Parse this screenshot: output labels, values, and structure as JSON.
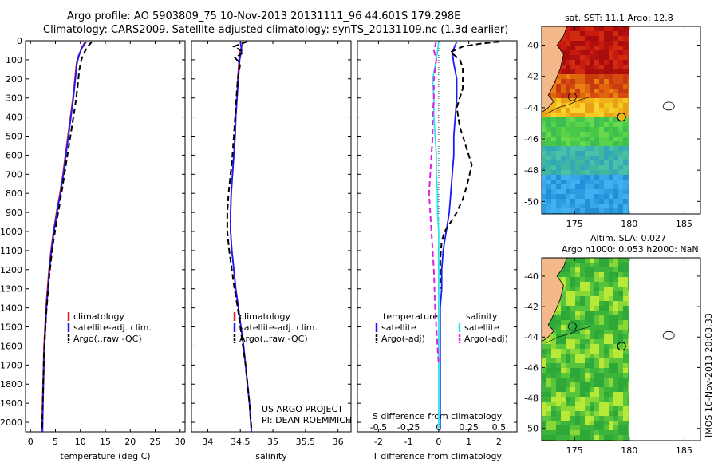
{
  "header": {
    "line1": "Argo profile: AO 5903809_75 10-Nov-2013 20131111_96 44.601S 179.298E",
    "line2": "Climatology: CARS2009. Satellite-adjusted climatology: synTS_20131109.nc (1.3d earlier)"
  },
  "colors": {
    "climatology": "#e02020",
    "satellite": "#1a1aff",
    "argo": "#000000",
    "salinity_satellite": "#33e6e6",
    "salinity_argo": "#e020e0",
    "land": "#f4b98a"
  },
  "chart_data": [
    {
      "id": "temperature",
      "type": "line",
      "xlabel": "temperature (deg C)",
      "xlim": [
        -1,
        31
      ],
      "xticks": [
        "0",
        "5",
        "10",
        "15",
        "20",
        "25",
        "30"
      ],
      "ylim": [
        0,
        2050
      ],
      "yticks": [
        "0",
        "100",
        "200",
        "300",
        "400",
        "500",
        "600",
        "700",
        "800",
        "900",
        "1000",
        "1100",
        "1200",
        "1300",
        "1400",
        "1500",
        "1600",
        "1700",
        "1800",
        "1900",
        "2000"
      ],
      "legend": [
        "climatology",
        "satellite-adj. clim.",
        "Argo(..raw -QC)"
      ],
      "series": [
        {
          "name": "climatology",
          "style": "solid",
          "color_key": "climatology",
          "points": [
            [
              11.2,
              5
            ],
            [
              10.3,
              40
            ],
            [
              9.6,
              80
            ],
            [
              9.2,
              120
            ],
            [
              8.9,
              200
            ],
            [
              8.5,
              300
            ],
            [
              8.0,
              400
            ],
            [
              7.5,
              500
            ],
            [
              7.0,
              600
            ],
            [
              6.5,
              700
            ],
            [
              5.9,
              800
            ],
            [
              5.2,
              900
            ],
            [
              4.6,
              1000
            ],
            [
              4.1,
              1100
            ],
            [
              3.7,
              1200
            ],
            [
              3.4,
              1300
            ],
            [
              3.1,
              1400
            ],
            [
              2.9,
              1500
            ],
            [
              2.7,
              1600
            ],
            [
              2.6,
              1700
            ],
            [
              2.5,
              1800
            ],
            [
              2.4,
              1900
            ],
            [
              2.3,
              2050
            ]
          ]
        },
        {
          "name": "satellite-adj. clim.",
          "style": "solid",
          "color_key": "satellite",
          "points": [
            [
              11.0,
              5
            ],
            [
              10.2,
              40
            ],
            [
              9.7,
              80
            ],
            [
              9.3,
              120
            ],
            [
              9.0,
              200
            ],
            [
              8.6,
              300
            ],
            [
              8.1,
              400
            ],
            [
              7.6,
              500
            ],
            [
              7.1,
              600
            ],
            [
              6.6,
              700
            ],
            [
              6.0,
              800
            ],
            [
              5.3,
              900
            ],
            [
              4.7,
              1000
            ],
            [
              4.2,
              1100
            ],
            [
              3.8,
              1200
            ],
            [
              3.5,
              1300
            ],
            [
              3.2,
              1400
            ],
            [
              3.0,
              1500
            ],
            [
              2.8,
              1600
            ],
            [
              2.7,
              1700
            ],
            [
              2.6,
              1800
            ],
            [
              2.5,
              1900
            ],
            [
              2.4,
              2050
            ]
          ]
        },
        {
          "name": "Argo(..raw -QC)",
          "style": "dashed",
          "color_key": "argo",
          "points": [
            [
              12.3,
              5
            ],
            [
              11.5,
              30
            ],
            [
              10.8,
              60
            ],
            [
              10.2,
              100
            ],
            [
              9.8,
              150
            ],
            [
              9.4,
              250
            ],
            [
              8.9,
              350
            ],
            [
              8.3,
              450
            ],
            [
              7.7,
              550
            ],
            [
              7.1,
              650
            ],
            [
              6.5,
              750
            ],
            [
              5.9,
              850
            ],
            [
              5.2,
              950
            ],
            [
              4.6,
              1050
            ],
            [
              4.1,
              1150
            ],
            [
              3.7,
              1250
            ],
            [
              3.4,
              1350
            ],
            [
              3.1,
              1450
            ],
            [
              2.9,
              1550
            ],
            [
              2.7,
              1650
            ],
            [
              2.6,
              1750
            ],
            [
              2.5,
              1850
            ],
            [
              2.4,
              1950
            ],
            [
              2.3,
              2030
            ]
          ]
        }
      ]
    },
    {
      "id": "salinity",
      "type": "line",
      "xlabel": "salinity",
      "xlim": [
        33.75,
        36.2
      ],
      "xticks": [
        "34",
        "34.5",
        "35",
        "35.5",
        "36"
      ],
      "ylim": [
        0,
        2050
      ],
      "legend": [
        "climatology",
        "satellite-adj. clim.",
        "Argo(..raw -QC)"
      ],
      "annotations": [
        "US ARGO PROJECT",
        "PI: DEAN ROEMMICH"
      ],
      "series": [
        {
          "name": "climatology",
          "style": "solid",
          "color_key": "climatology",
          "points": [
            [
              34.55,
              5
            ],
            [
              34.5,
              50
            ],
            [
              34.48,
              100
            ],
            [
              34.46,
              200
            ],
            [
              34.45,
              300
            ],
            [
              34.43,
              400
            ],
            [
              34.42,
              500
            ],
            [
              34.4,
              600
            ],
            [
              34.38,
              700
            ],
            [
              34.36,
              800
            ],
            [
              34.35,
              900
            ],
            [
              34.35,
              1000
            ],
            [
              34.37,
              1100
            ],
            [
              34.4,
              1200
            ],
            [
              34.43,
              1300
            ],
            [
              34.47,
              1400
            ],
            [
              34.51,
              1500
            ],
            [
              34.55,
              1600
            ],
            [
              34.58,
              1700
            ],
            [
              34.61,
              1800
            ],
            [
              34.64,
              1900
            ],
            [
              34.67,
              2050
            ]
          ]
        },
        {
          "name": "satellite-adj. clim.",
          "style": "solid",
          "color_key": "satellite",
          "points": [
            [
              34.5,
              5
            ],
            [
              34.52,
              50
            ],
            [
              34.49,
              100
            ],
            [
              34.47,
              200
            ],
            [
              34.45,
              300
            ],
            [
              34.43,
              400
            ],
            [
              34.42,
              500
            ],
            [
              34.4,
              600
            ],
            [
              34.38,
              700
            ],
            [
              34.36,
              800
            ],
            [
              34.35,
              900
            ],
            [
              34.35,
              1000
            ],
            [
              34.37,
              1100
            ],
            [
              34.4,
              1200
            ],
            [
              34.43,
              1300
            ],
            [
              34.47,
              1400
            ],
            [
              34.51,
              1500
            ],
            [
              34.55,
              1600
            ],
            [
              34.58,
              1700
            ],
            [
              34.61,
              1800
            ],
            [
              34.64,
              1900
            ],
            [
              34.67,
              2050
            ]
          ]
        },
        {
          "name": "Argo(..raw -QC)",
          "style": "dashed",
          "color_key": "argo",
          "points": [
            [
              34.6,
              5
            ],
            [
              34.4,
              30
            ],
            [
              34.55,
              60
            ],
            [
              34.42,
              90
            ],
            [
              34.5,
              120
            ],
            [
              34.46,
              200
            ],
            [
              34.44,
              300
            ],
            [
              34.42,
              400
            ],
            [
              34.4,
              500
            ],
            [
              34.38,
              600
            ],
            [
              34.35,
              700
            ],
            [
              34.32,
              800
            ],
            [
              34.3,
              900
            ],
            [
              34.3,
              1000
            ],
            [
              34.33,
              1100
            ],
            [
              34.37,
              1200
            ],
            [
              34.41,
              1300
            ],
            [
              34.46,
              1400
            ],
            [
              34.5,
              1500
            ],
            [
              34.54,
              1600
            ],
            [
              34.58,
              1700
            ],
            [
              34.61,
              1800
            ],
            [
              34.64,
              1900
            ],
            [
              34.67,
              2030
            ]
          ]
        }
      ]
    },
    {
      "id": "differences",
      "type": "line",
      "xlabel": "T difference from climatology",
      "xlabel_top": "S difference from climatology",
      "xlim": [
        -2.7,
        2.6
      ],
      "xticks": [
        "-2",
        "-1",
        "0",
        "1",
        "2"
      ],
      "xticks_top": [
        "-0.5",
        "-0.25",
        "0",
        "0.25",
        "0.5"
      ],
      "ylim": [
        0,
        2050
      ],
      "legend_headers": [
        "temperature",
        "salinity"
      ],
      "legend": [
        "satellite",
        "Argo(-adj)",
        "satellite",
        "Argo(-adj)"
      ],
      "series": [
        {
          "name": "T satellite",
          "style": "solid",
          "color_key": "satellite",
          "points": [
            [
              0.6,
              5
            ],
            [
              0.45,
              60
            ],
            [
              0.5,
              120
            ],
            [
              0.6,
              200
            ],
            [
              0.6,
              300
            ],
            [
              0.55,
              400
            ],
            [
              0.5,
              500
            ],
            [
              0.5,
              600
            ],
            [
              0.45,
              700
            ],
            [
              0.4,
              800
            ],
            [
              0.35,
              900
            ],
            [
              0.25,
              1000
            ],
            [
              0.15,
              1100
            ],
            [
              0.1,
              1200
            ],
            [
              0.1,
              1300
            ],
            [
              0.05,
              1400
            ],
            [
              0.05,
              1500
            ],
            [
              0.05,
              1600
            ],
            [
              0.05,
              1700
            ],
            [
              0.05,
              1800
            ],
            [
              0.05,
              1900
            ],
            [
              0.05,
              2040
            ]
          ]
        },
        {
          "name": "T Argo(-adj)",
          "style": "dashed",
          "color_key": "argo",
          "points": [
            [
              2.0,
              5
            ],
            [
              1.4,
              15
            ],
            [
              0.8,
              30
            ],
            [
              0.4,
              60
            ],
            [
              0.7,
              100
            ],
            [
              0.8,
              140
            ],
            [
              0.8,
              250
            ],
            [
              0.6,
              350
            ],
            [
              0.7,
              450
            ],
            [
              0.9,
              550
            ],
            [
              1.1,
              650
            ],
            [
              1.0,
              720
            ],
            [
              0.9,
              780
            ],
            [
              0.8,
              830
            ],
            [
              0.6,
              900
            ],
            [
              0.4,
              950
            ],
            [
              0.2,
              1000
            ],
            [
              0.1,
              1050
            ],
            [
              0.05,
              1150
            ],
            [
              0.05,
              1300
            ]
          ]
        },
        {
          "name": "S satellite",
          "style": "solid",
          "color_key": "salinity_satellite",
          "points": [
            [
              0.0,
              5
            ],
            [
              -0.02,
              100
            ],
            [
              -0.05,
              200
            ],
            [
              -0.04,
              300
            ],
            [
              -0.04,
              400
            ],
            [
              -0.03,
              500
            ],
            [
              -0.02,
              600
            ],
            [
              -0.02,
              700
            ],
            [
              -0.01,
              800
            ],
            [
              -0.01,
              900
            ],
            [
              0.0,
              1000
            ],
            [
              0.0,
              1100
            ],
            [
              0.0,
              1200
            ],
            [
              0.0,
              1300
            ],
            [
              0.0,
              1400
            ],
            [
              0.0,
              1500
            ],
            [
              0.0,
              1600
            ],
            [
              0.0,
              1700
            ],
            [
              0.0,
              1800
            ],
            [
              0.0,
              1900
            ],
            [
              0.0,
              2030
            ]
          ]
        },
        {
          "name": "S Argo(-adj)",
          "style": "dashed",
          "color_key": "salinity_argo",
          "points": [
            [
              -0.02,
              5
            ],
            [
              -0.04,
              50
            ],
            [
              -0.02,
              100
            ],
            [
              -0.04,
              200
            ],
            [
              -0.04,
              300
            ],
            [
              -0.05,
              400
            ],
            [
              -0.05,
              500
            ],
            [
              -0.06,
              600
            ],
            [
              -0.07,
              700
            ],
            [
              -0.08,
              800
            ],
            [
              -0.07,
              900
            ],
            [
              -0.06,
              1000
            ],
            [
              -0.05,
              1100
            ],
            [
              -0.04,
              1200
            ],
            [
              -0.035,
              1300
            ],
            [
              -0.03,
              1400
            ],
            [
              -0.02,
              1500
            ],
            [
              -0.01,
              1600
            ],
            [
              0.0,
              1700
            ]
          ]
        }
      ]
    }
  ],
  "maps": [
    {
      "id": "sst-map",
      "title": "sat. SST: 11.1  Argo: 12.8",
      "xticks": [
        "175",
        "180",
        "185"
      ],
      "yticks": [
        "-40",
        "-42",
        "-44",
        "-46",
        "-48",
        "-50"
      ]
    },
    {
      "id": "sla-map",
      "title_line1": "Altim. SLA: 0.027",
      "title_line2": "Argo h1000: 0.053  h2000: NaN",
      "xticks": [
        "175",
        "180",
        "185"
      ],
      "yticks": [
        "-40",
        "-42",
        "-44",
        "-46",
        "-48",
        "-50"
      ]
    }
  ],
  "footer": {
    "credit": "IMOS 16-Nov-2013 20:03:33"
  }
}
